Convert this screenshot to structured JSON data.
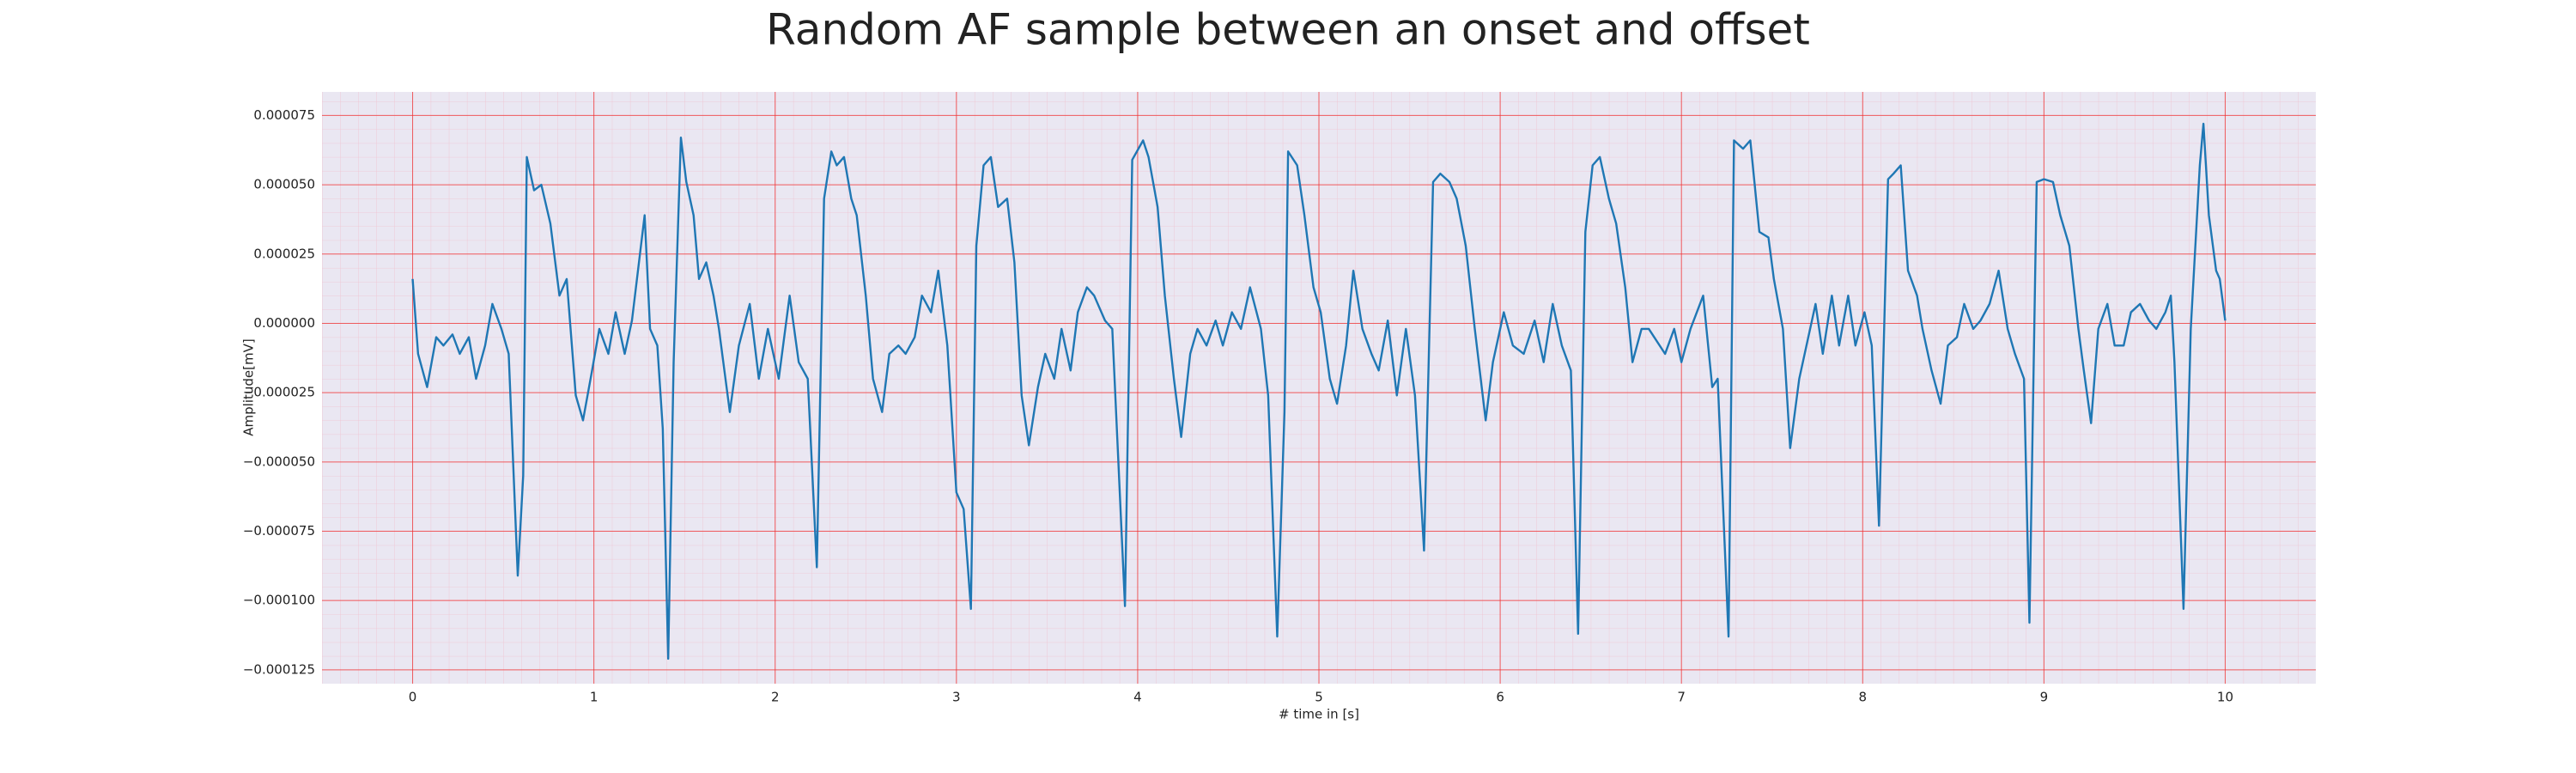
{
  "chart_data": {
    "type": "line",
    "title": "Random AF sample between an onset and offset",
    "xlabel": "# time in [s]",
    "ylabel": "Amplitude[mV]",
    "color": "#1f77b4",
    "grid": true,
    "xlim": [
      -0.5,
      10.5
    ],
    "xticks": [
      0,
      1,
      2,
      3,
      4,
      5,
      6,
      7,
      8,
      9,
      10
    ],
    "ylim": [
      -0.00013,
      8.35e-05
    ],
    "yticks": [
      {
        "value": -0.000125,
        "label": "−0.000125"
      },
      {
        "value": -0.0001,
        "label": "−0.000100"
      },
      {
        "value": -7.5e-05,
        "label": "−0.000075"
      },
      {
        "value": -5e-05,
        "label": "−0.000050"
      },
      {
        "value": -2.5e-05,
        "label": "−0.000025"
      },
      {
        "value": 0,
        "label": "0.000000"
      },
      {
        "value": 2.5e-05,
        "label": "0.000025"
      },
      {
        "value": 5e-05,
        "label": "0.000050"
      },
      {
        "value": 7.5e-05,
        "label": "0.000075"
      }
    ],
    "x": [
      0,
      0.03,
      0.08,
      0.13,
      0.17,
      0.22,
      0.26,
      0.31,
      0.35,
      0.4,
      0.44,
      0.49,
      0.53,
      0.58,
      0.61,
      0.63,
      0.67,
      0.71,
      0.76,
      0.81,
      0.85,
      0.9,
      0.94,
      0.99,
      1.03,
      1.08,
      1.12,
      1.17,
      1.21,
      1.28,
      1.31,
      1.35,
      1.38,
      1.41,
      1.44,
      1.48,
      1.51,
      1.55,
      1.58,
      1.62,
      1.66,
      1.69,
      1.75,
      1.8,
      1.86,
      1.91,
      1.96,
      2.02,
      2.08,
      2.13,
      2.18,
      2.23,
      2.27,
      2.31,
      2.34,
      2.38,
      2.42,
      2.45,
      2.5,
      2.54,
      2.59,
      2.63,
      2.68,
      2.72,
      2.77,
      2.81,
      2.86,
      2.9,
      2.95,
      3.0,
      3.04,
      3.08,
      3.11,
      3.15,
      3.19,
      3.23,
      3.28,
      3.32,
      3.36,
      3.4,
      3.45,
      3.49,
      3.54,
      3.58,
      3.63,
      3.67,
      3.72,
      3.76,
      3.82,
      3.86,
      3.93,
      3.97,
      4.03,
      4.06,
      4.11,
      4.15,
      4.2,
      4.24,
      4.29,
      4.33,
      4.38,
      4.43,
      4.47,
      4.52,
      4.57,
      4.62,
      4.68,
      4.72,
      4.77,
      4.81,
      4.83,
      4.88,
      4.92,
      4.97,
      5.01,
      5.06,
      5.1,
      5.15,
      5.19,
      5.24,
      5.29,
      5.33,
      5.38,
      5.43,
      5.48,
      5.53,
      5.58,
      5.63,
      5.67,
      5.72,
      5.76,
      5.81,
      5.86,
      5.92,
      5.96,
      6.02,
      6.07,
      6.13,
      6.19,
      6.24,
      6.29,
      6.34,
      6.39,
      6.43,
      6.47,
      6.51,
      6.55,
      6.6,
      6.64,
      6.69,
      6.73,
      6.78,
      6.82,
      6.91,
      6.96,
      7.0,
      7.05,
      7.12,
      7.17,
      7.2,
      7.26,
      7.29,
      7.34,
      7.38,
      7.43,
      7.48,
      7.51,
      7.56,
      7.6,
      7.65,
      7.69,
      7.74,
      7.78,
      7.83,
      7.87,
      7.92,
      7.96,
      8.01,
      8.05,
      8.09,
      8.14,
      8.17,
      8.21,
      8.25,
      8.3,
      8.33,
      8.38,
      8.43,
      8.47,
      8.52,
      8.56,
      8.61,
      8.65,
      8.7,
      8.75,
      8.8,
      8.84,
      8.89,
      8.92,
      8.96,
      9.0,
      9.05,
      9.09,
      9.14,
      9.19,
      9.22,
      9.26,
      9.3,
      9.35,
      9.39,
      9.44,
      9.48,
      9.53,
      9.58,
      9.62,
      9.67,
      9.7,
      9.72,
      9.77,
      9.81,
      9.86,
      9.88,
      9.91,
      9.95,
      9.97,
      10.0
    ],
    "values": [
      1.6e-05,
      -1.1e-05,
      -2.3e-05,
      -5e-06,
      -8e-06,
      -4e-06,
      -1.1e-05,
      -5e-06,
      -2e-05,
      -8e-06,
      7e-06,
      -2e-06,
      -1.1e-05,
      -9.1e-05,
      -5.5e-05,
      6e-05,
      4.8e-05,
      5e-05,
      3.6e-05,
      1e-05,
      1.6e-05,
      -2.6e-05,
      -3.5e-05,
      -1.7e-05,
      -2e-06,
      -1.1e-05,
      4e-06,
      -1.1e-05,
      1e-06,
      3.9e-05,
      -2e-06,
      -8e-06,
      -3.8e-05,
      -0.000121,
      -1.4e-05,
      6.7e-05,
      5.1e-05,
      3.9e-05,
      1.6e-05,
      2.2e-05,
      1e-05,
      -2e-06,
      -3.2e-05,
      -8e-06,
      7e-06,
      -2e-05,
      -2e-06,
      -2e-05,
      1e-05,
      -1.4e-05,
      -2e-05,
      -8.8e-05,
      4.5e-05,
      6.2e-05,
      5.7e-05,
      6e-05,
      4.5e-05,
      3.9e-05,
      1e-05,
      -2e-05,
      -3.2e-05,
      -1.1e-05,
      -8e-06,
      -1.1e-05,
      -5e-06,
      1e-05,
      4e-06,
      1.9e-05,
      -8e-06,
      -6.1e-05,
      -6.7e-05,
      -0.000103,
      2.8e-05,
      5.7e-05,
      6e-05,
      4.2e-05,
      4.5e-05,
      2.2e-05,
      -2.6e-05,
      -4.4e-05,
      -2.3e-05,
      -1.1e-05,
      -2e-05,
      -2e-06,
      -1.7e-05,
      4e-06,
      1.3e-05,
      1e-05,
      1e-06,
      -2e-06,
      -0.000102,
      5.9e-05,
      6.6e-05,
      6e-05,
      4.2e-05,
      1e-05,
      -2e-05,
      -4.1e-05,
      -1.1e-05,
      -2e-06,
      -8e-06,
      1e-06,
      -8e-06,
      4e-06,
      -2e-06,
      1.3e-05,
      -2e-06,
      -2.6e-05,
      -0.000113,
      -3.2e-05,
      6.2e-05,
      5.7e-05,
      3.9e-05,
      1.3e-05,
      4e-06,
      -2e-05,
      -2.9e-05,
      -8e-06,
      1.9e-05,
      -2e-06,
      -1.1e-05,
      -1.7e-05,
      1e-06,
      -2.6e-05,
      -2e-06,
      -2.6e-05,
      -8.2e-05,
      5.1e-05,
      5.4e-05,
      5.1e-05,
      4.5e-05,
      2.8e-05,
      -2e-06,
      -3.5e-05,
      -1.4e-05,
      4e-06,
      -8e-06,
      -1.1e-05,
      1e-06,
      -1.4e-05,
      7e-06,
      -8e-06,
      -1.7e-05,
      -0.000112,
      3.3e-05,
      5.7e-05,
      6e-05,
      4.5e-05,
      3.6e-05,
      1.3e-05,
      -1.4e-05,
      -2e-06,
      -2e-06,
      -1.1e-05,
      -2e-06,
      -1.4e-05,
      -2e-06,
      1e-05,
      -2.3e-05,
      -2e-05,
      -0.000113,
      6.6e-05,
      6.3e-05,
      6.6e-05,
      3.3e-05,
      3.1e-05,
      1.6e-05,
      -2e-06,
      -4.5e-05,
      -2e-05,
      -8e-06,
      7e-06,
      -1.1e-05,
      1e-05,
      -8e-06,
      1e-05,
      -8e-06,
      4e-06,
      -8e-06,
      -7.3e-05,
      5.2e-05,
      5.4e-05,
      5.7e-05,
      1.9e-05,
      1e-05,
      -2e-06,
      -1.7e-05,
      -2.9e-05,
      -8e-06,
      -5e-06,
      7e-06,
      -2e-06,
      1e-06,
      7e-06,
      1.9e-05,
      -2e-06,
      -1.1e-05,
      -2e-05,
      -0.000108,
      5.1e-05,
      5.2e-05,
      5.1e-05,
      3.9e-05,
      2.8e-05,
      -2e-06,
      -1.7e-05,
      -3.6e-05,
      -2e-06,
      7e-06,
      -8e-06,
      -8e-06,
      4e-06,
      7e-06,
      1e-06,
      -2e-06,
      4e-06,
      1e-05,
      -1.4e-05,
      -0.000103,
      -2e-06,
      5.7e-05,
      7.2e-05,
      3.9e-05,
      1.9e-05,
      1.6e-05,
      1e-06
    ]
  }
}
